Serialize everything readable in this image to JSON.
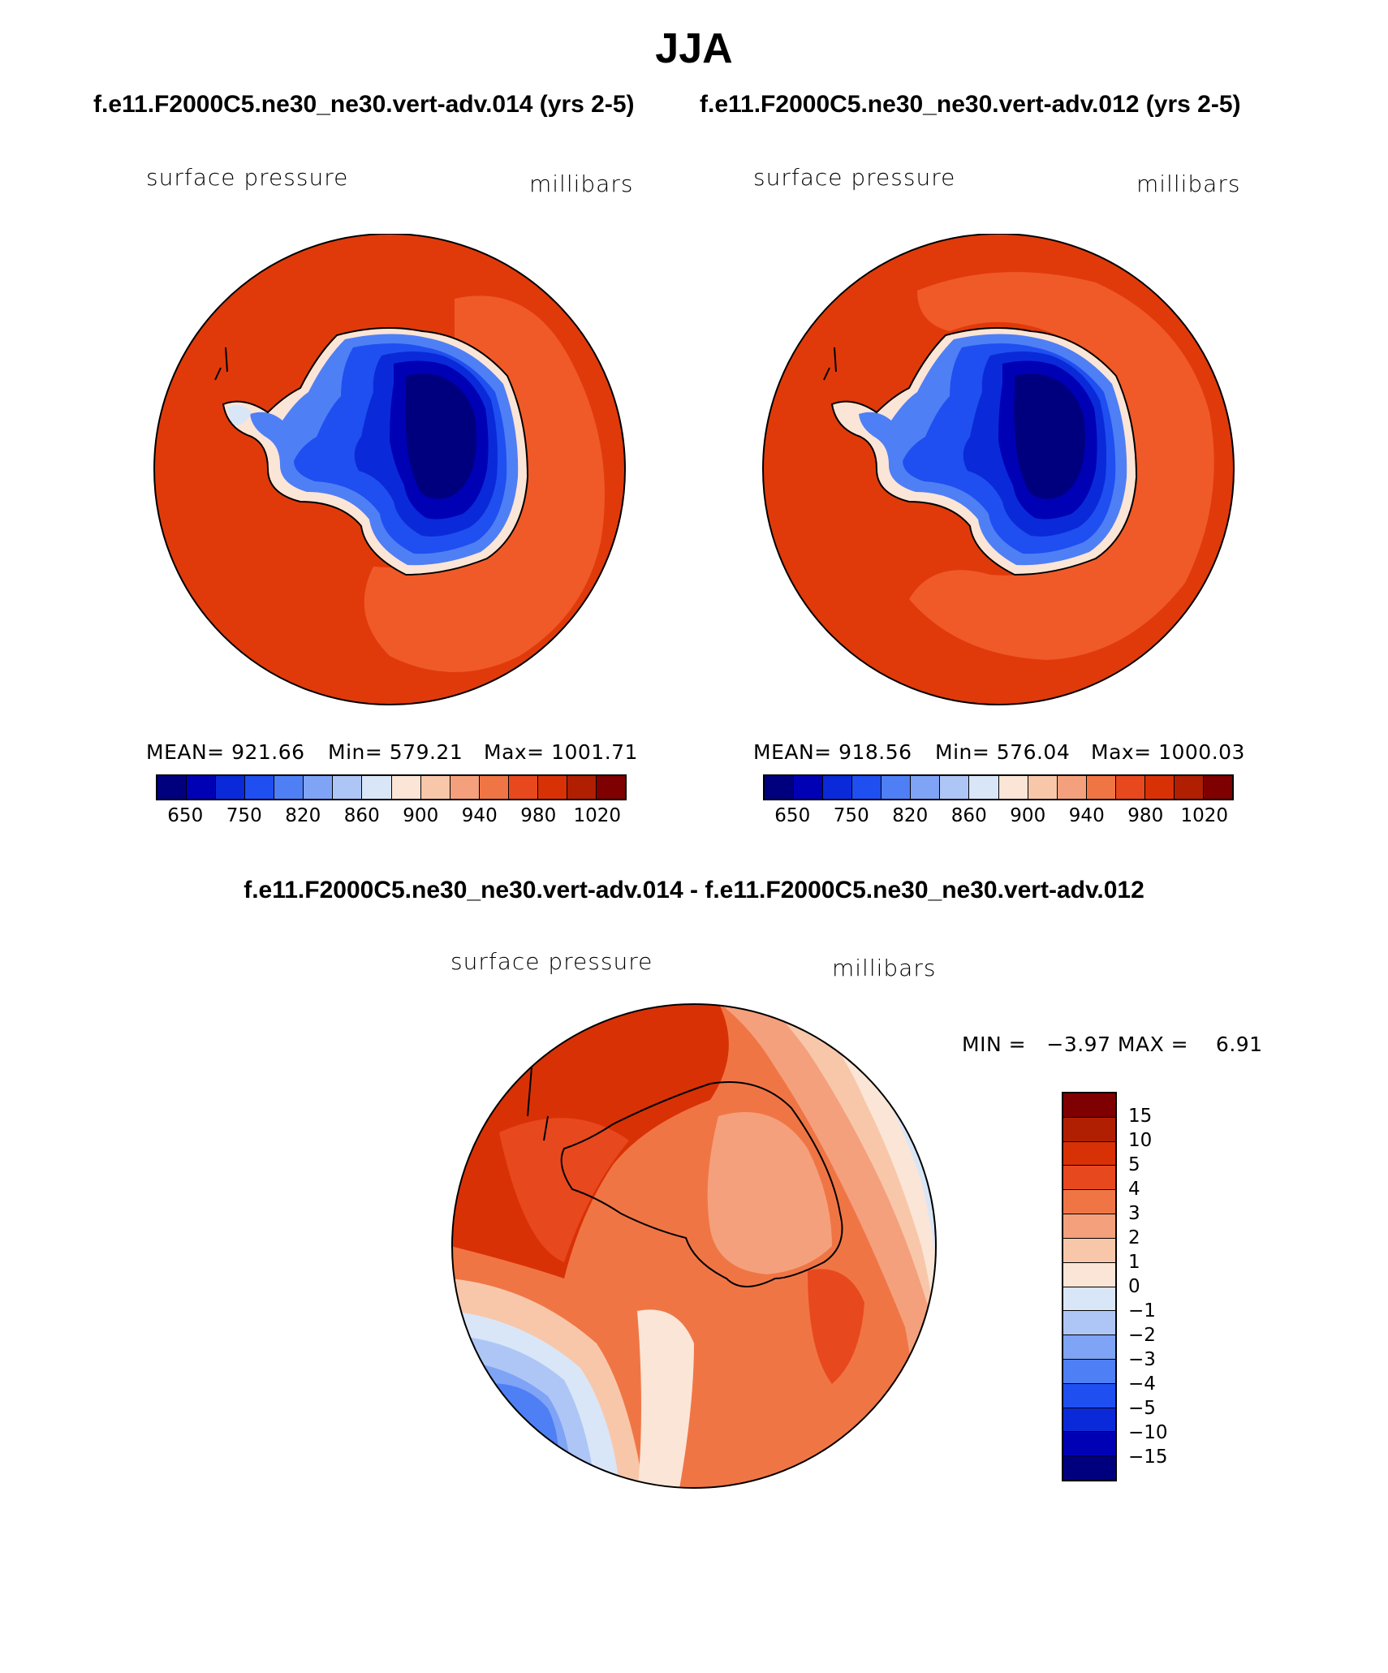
{
  "title": "JJA",
  "left_panel": {
    "subtitle": "f.e11.F2000C5.ne30_ne30.vert-adv.014 (yrs 2-5)",
    "variable": "surface pressure",
    "units": "millibars",
    "mean_label": "MEAN= 921.66",
    "min_label": "Min= 579.21",
    "max_label": "Max= 1001.71",
    "mean": 921.66,
    "min": 579.21,
    "max": 1001.71
  },
  "right_panel": {
    "subtitle": "f.e11.F2000C5.ne30_ne30.vert-adv.012 (yrs 2-5)",
    "variable": "surface pressure",
    "units": "millibars",
    "mean_label": "MEAN= 918.56",
    "min_label": "Min= 576.04",
    "max_label": "Max= 1000.03",
    "mean": 918.56,
    "min": 576.04,
    "max": 1000.03
  },
  "diff_panel": {
    "subtitle": "f.e11.F2000C5.ne30_ne30.vert-adv.014 - f.e11.F2000C5.ne30_ne30.vert-adv.012",
    "variable": "surface pressure",
    "units": "millibars",
    "minmax_label": "MIN =   −3.97 MAX =    6.91",
    "min": -3.97,
    "max": 6.91
  },
  "colorbar_main": {
    "colors": [
      "#00007f",
      "#0000b5",
      "#0a2ad9",
      "#1f4ff0",
      "#4f7ff5",
      "#7fa3f5",
      "#aec6f6",
      "#d9e6f8",
      "#fbe5d6",
      "#f8c7aa",
      "#f4a07c",
      "#f07545",
      "#e8481e",
      "#d93106",
      "#b01f02",
      "#7f0000"
    ],
    "labels": [
      "650",
      "750",
      "820",
      "860",
      "900",
      "940",
      "980",
      "1020"
    ]
  },
  "colorbar_diff": {
    "colors": [
      "#7f0000",
      "#b01f02",
      "#d93106",
      "#e8481e",
      "#f07545",
      "#f4a07c",
      "#f8c7aa",
      "#fbe5d6",
      "#d9e6f8",
      "#aec6f6",
      "#7fa3f5",
      "#4f7ff5",
      "#1f4ff0",
      "#0a2ad9",
      "#0000b5",
      "#00007f"
    ],
    "labels": [
      "15",
      "10",
      "5",
      "4",
      "3",
      "2",
      "1",
      "0",
      "−1",
      "−2",
      "−3",
      "−4",
      "−5",
      "−10",
      "−15"
    ]
  }
}
